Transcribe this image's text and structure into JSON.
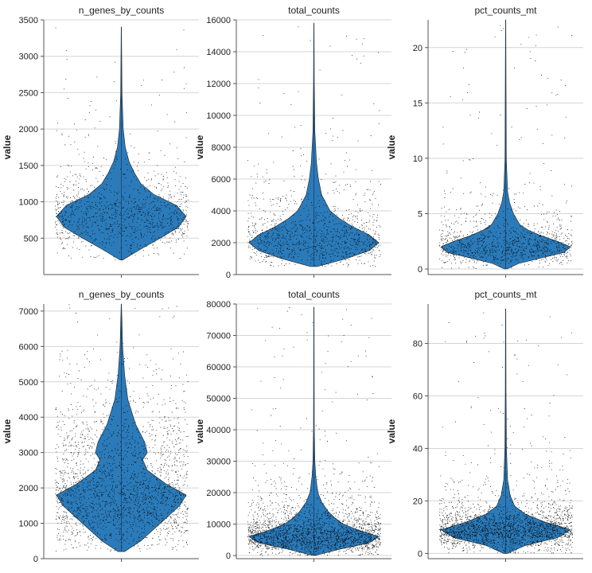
{
  "chart_data": [
    {
      "type": "violin",
      "title": "n_genes_by_counts",
      "ylabel": "value",
      "ylim": [
        0,
        3500
      ],
      "yticks": [
        500,
        1000,
        1500,
        2000,
        2500,
        3000,
        3500
      ],
      "grid": true,
      "violin_color": "#2b7bba",
      "series": [
        {
          "name": "n_genes_by_counts",
          "min": 200,
          "max": 3400,
          "median": 850,
          "density": [
            [
              200,
              0.02
            ],
            [
              350,
              0.3
            ],
            [
              500,
              0.6
            ],
            [
              650,
              0.88
            ],
            [
              800,
              1.0
            ],
            [
              950,
              0.85
            ],
            [
              1100,
              0.5
            ],
            [
              1250,
              0.3
            ],
            [
              1400,
              0.2
            ],
            [
              1550,
              0.12
            ],
            [
              1750,
              0.06
            ],
            [
              2000,
              0.03
            ],
            [
              2500,
              0.01
            ],
            [
              3400,
              0.003
            ]
          ]
        }
      ]
    },
    {
      "type": "violin",
      "title": "total_counts",
      "ylabel": "value",
      "ylim": [
        0,
        16000
      ],
      "yticks": [
        0,
        2000,
        4000,
        6000,
        8000,
        10000,
        12000,
        14000,
        16000
      ],
      "grid": true,
      "violin_color": "#2b7bba",
      "series": [
        {
          "name": "total_counts",
          "min": 500,
          "max": 15800,
          "median": 2200,
          "density": [
            [
              500,
              0.05
            ],
            [
              1000,
              0.5
            ],
            [
              1500,
              0.85
            ],
            [
              2000,
              1.0
            ],
            [
              2500,
              0.85
            ],
            [
              3000,
              0.6
            ],
            [
              3500,
              0.4
            ],
            [
              4000,
              0.25
            ],
            [
              5000,
              0.12
            ],
            [
              6000,
              0.07
            ],
            [
              7000,
              0.04
            ],
            [
              9000,
              0.015
            ],
            [
              12000,
              0.006
            ],
            [
              15800,
              0.003
            ]
          ]
        }
      ]
    },
    {
      "type": "violin",
      "title": "pct_counts_mt",
      "ylabel": "value",
      "ylim": [
        -0.5,
        22.5
      ],
      "yticks": [
        0,
        5,
        10,
        15,
        20
      ],
      "grid": true,
      "violin_color": "#2b7bba",
      "series": [
        {
          "name": "pct_counts_mt",
          "min": 0,
          "max": 22.5,
          "median": 2,
          "density": [
            [
              0,
              0.02
            ],
            [
              0.5,
              0.2
            ],
            [
              1,
              0.55
            ],
            [
              1.5,
              0.9
            ],
            [
              2,
              1.0
            ],
            [
              2.5,
              0.8
            ],
            [
              3,
              0.55
            ],
            [
              3.5,
              0.35
            ],
            [
              4,
              0.22
            ],
            [
              5,
              0.12
            ],
            [
              6,
              0.06
            ],
            [
              7,
              0.03
            ],
            [
              10,
              0.01
            ],
            [
              22.5,
              0.003
            ]
          ]
        }
      ]
    },
    {
      "type": "violin",
      "title": "n_genes_by_counts",
      "ylabel": "value",
      "ylim": [
        0,
        7200
      ],
      "yticks": [
        0,
        1000,
        2000,
        3000,
        4000,
        5000,
        6000,
        7000
      ],
      "grid": true,
      "violin_color": "#2b7bba",
      "series": [
        {
          "name": "n_genes_by_counts",
          "min": 200,
          "max": 7200,
          "median": 1800,
          "density": [
            [
              200,
              0.05
            ],
            [
              500,
              0.3
            ],
            [
              1000,
              0.6
            ],
            [
              1500,
              0.9
            ],
            [
              1800,
              1.0
            ],
            [
              2100,
              0.7
            ],
            [
              2500,
              0.4
            ],
            [
              2800,
              0.33
            ],
            [
              3000,
              0.4
            ],
            [
              3300,
              0.36
            ],
            [
              3800,
              0.22
            ],
            [
              4500,
              0.1
            ],
            [
              5200,
              0.05
            ],
            [
              6000,
              0.02
            ],
            [
              7200,
              0.003
            ]
          ]
        }
      ]
    },
    {
      "type": "violin",
      "title": "total_counts",
      "ylabel": "value",
      "ylim": [
        -1000,
        80000
      ],
      "yticks": [
        0,
        10000,
        20000,
        30000,
        40000,
        50000,
        60000,
        70000,
        80000
      ],
      "grid": true,
      "violin_color": "#2b7bba",
      "series": [
        {
          "name": "total_counts",
          "min": 0,
          "max": 79000,
          "median": 6000,
          "density": [
            [
              0,
              0.02
            ],
            [
              2000,
              0.4
            ],
            [
              4000,
              0.85
            ],
            [
              6000,
              1.0
            ],
            [
              8000,
              0.7
            ],
            [
              10000,
              0.45
            ],
            [
              12000,
              0.32
            ],
            [
              14000,
              0.22
            ],
            [
              17000,
              0.12
            ],
            [
              20000,
              0.06
            ],
            [
              25000,
              0.03
            ],
            [
              30000,
              0.015
            ],
            [
              40000,
              0.006
            ],
            [
              79000,
              0.002
            ]
          ]
        }
      ]
    },
    {
      "type": "violin",
      "title": "pct_counts_mt",
      "ylabel": "value",
      "ylim": [
        -2,
        95
      ],
      "yticks": [
        0,
        20,
        40,
        60,
        80
      ],
      "grid": true,
      "violin_color": "#2b7bba",
      "series": [
        {
          "name": "pct_counts_mt",
          "min": 0,
          "max": 93,
          "median": 9,
          "density": [
            [
              0,
              0.03
            ],
            [
              3,
              0.3
            ],
            [
              6,
              0.8
            ],
            [
              9,
              1.0
            ],
            [
              12,
              0.6
            ],
            [
              15,
              0.3
            ],
            [
              18,
              0.14
            ],
            [
              22,
              0.07
            ],
            [
              28,
              0.03
            ],
            [
              40,
              0.012
            ],
            [
              60,
              0.006
            ],
            [
              93,
              0.002
            ]
          ]
        }
      ]
    }
  ]
}
